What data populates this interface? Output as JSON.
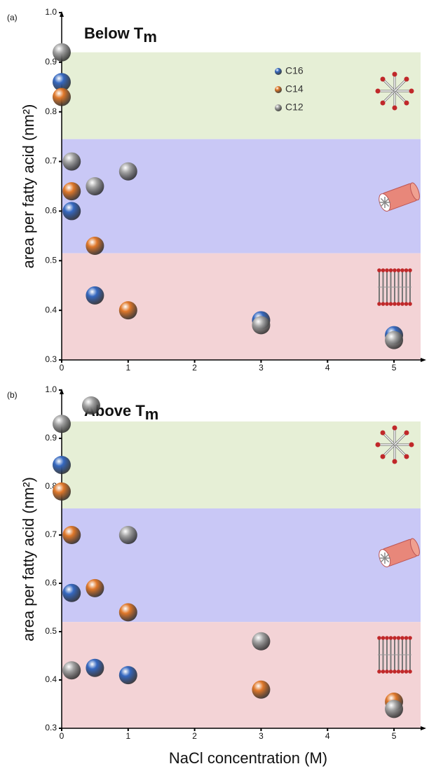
{
  "chart_data": [
    {
      "type": "scatter",
      "panel_label": "(a)",
      "title": "Below T",
      "title_subscript": "m",
      "y_label": "area per fatty acid (nm²)",
      "xlim": [
        0,
        5.4
      ],
      "xticks": [
        0,
        1,
        2,
        3,
        4,
        5
      ],
      "ylim": [
        0.3,
        1.0
      ],
      "yticks": [
        0.3,
        0.4,
        0.5,
        0.6,
        0.7,
        0.8,
        0.9,
        {
          "value": 1,
          "label": "1.0"
        }
      ],
      "legend": true,
      "regions": [
        {
          "ymin": 0.745,
          "ymax": 0.92,
          "color": "#e6efd6"
        },
        {
          "ymin": 0.515,
          "ymax": 0.745,
          "color": "#c9c8f6"
        },
        {
          "ymin": 0.3,
          "ymax": 0.515,
          "color": "#f3d3d6"
        }
      ],
      "series": [
        {
          "name": "C16",
          "color": "#3568c0",
          "x": [
            0,
            0.15,
            0.5,
            3,
            5
          ],
          "values": [
            0.86,
            0.6,
            0.43,
            0.38,
            0.35
          ]
        },
        {
          "name": "C14",
          "color": "#e0782a",
          "x": [
            0,
            0.15,
            0.5,
            1
          ],
          "values": [
            0.83,
            0.64,
            0.53,
            0.4
          ]
        },
        {
          "name": "C12",
          "color": "#a4a4a4",
          "x": [
            0,
            0.15,
            0.5,
            1,
            3,
            5
          ],
          "values": [
            0.92,
            0.7,
            0.65,
            0.68,
            0.37,
            0.34
          ]
        }
      ]
    },
    {
      "type": "scatter",
      "panel_label": "(b)",
      "title": "Above T",
      "title_subscript": "m",
      "y_label": "area per fatty acid (nm²)",
      "x_label": "NaCl concentration (M)",
      "xlim": [
        0,
        5.4
      ],
      "xticks": [
        0,
        1,
        2,
        3,
        4,
        5
      ],
      "ylim": [
        0.3,
        1.0
      ],
      "yticks": [
        0.3,
        0.4,
        0.5,
        0.6,
        0.7,
        0.8,
        0.9,
        {
          "value": 1,
          "label": "1.0"
        }
      ],
      "legend": false,
      "regions": [
        {
          "ymin": 0.755,
          "ymax": 0.935,
          "color": "#e6efd6"
        },
        {
          "ymin": 0.52,
          "ymax": 0.755,
          "color": "#c9c8f6"
        },
        {
          "ymin": 0.3,
          "ymax": 0.52,
          "color": "#f3d3d6"
        }
      ],
      "series": [
        {
          "color": "#3568c0",
          "x": [
            0,
            0.15,
            0.5,
            1
          ],
          "values": [
            0.845,
            0.58,
            0.425,
            0.41
          ]
        },
        {
          "color": "#e0782a",
          "x": [
            0,
            0.15,
            0.5,
            1,
            3,
            5
          ],
          "values": [
            0.79,
            0.7,
            0.59,
            0.54,
            0.38,
            0.355
          ]
        },
        {
          "color": "#a4a4a4",
          "x": [
            0,
            0.15,
            1,
            3,
            5
          ],
          "values": [
            0.93,
            0.42,
            0.7,
            0.48,
            0.34
          ]
        }
      ]
    }
  ]
}
